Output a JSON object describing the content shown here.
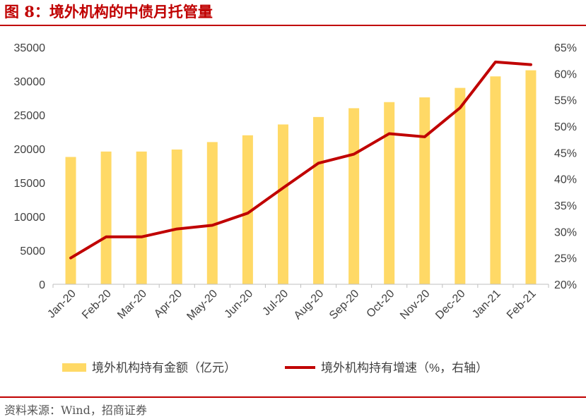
{
  "header": {
    "title": "图 8：境外机构的中债月托管量"
  },
  "footer": {
    "source": "资料来源：Wind，招商证券"
  },
  "chart_data": {
    "type": "bar",
    "title": "",
    "categories": [
      "Jan-20",
      "Feb-20",
      "Mar-20",
      "Apr-20",
      "May-20",
      "Jun-20",
      "Jul-20",
      "Aug-20",
      "Sep-20",
      "Oct-20",
      "Nov-20",
      "Dec-20",
      "Jan-21",
      "Feb-21"
    ],
    "series": [
      {
        "name": "境外机构持有金额（亿元）",
        "type": "bar",
        "axis": "left",
        "color": "#ffd966",
        "values": [
          18800,
          19600,
          19600,
          19900,
          21000,
          22000,
          23600,
          24700,
          26000,
          26900,
          27600,
          29000,
          30700,
          31600
        ]
      },
      {
        "name": "境外机构持有增速（%，右轴）",
        "type": "line",
        "axis": "right",
        "color": "#c00000",
        "values": [
          25.0,
          29.0,
          29.0,
          30.5,
          31.2,
          33.5,
          38.3,
          43.0,
          44.7,
          48.6,
          48.0,
          53.5,
          62.2,
          61.7
        ]
      }
    ],
    "y_left": {
      "min": 0,
      "max": 35000,
      "ticks": [
        "0",
        "5000",
        "10000",
        "15000",
        "20000",
        "25000",
        "30000",
        "35000"
      ]
    },
    "y_right": {
      "min": 20,
      "max": 65,
      "ticks": [
        "20%",
        "25%",
        "30%",
        "35%",
        "40%",
        "45%",
        "50%",
        "55%",
        "60%",
        "65%"
      ]
    },
    "grid": false,
    "legend_position": "bottom"
  }
}
